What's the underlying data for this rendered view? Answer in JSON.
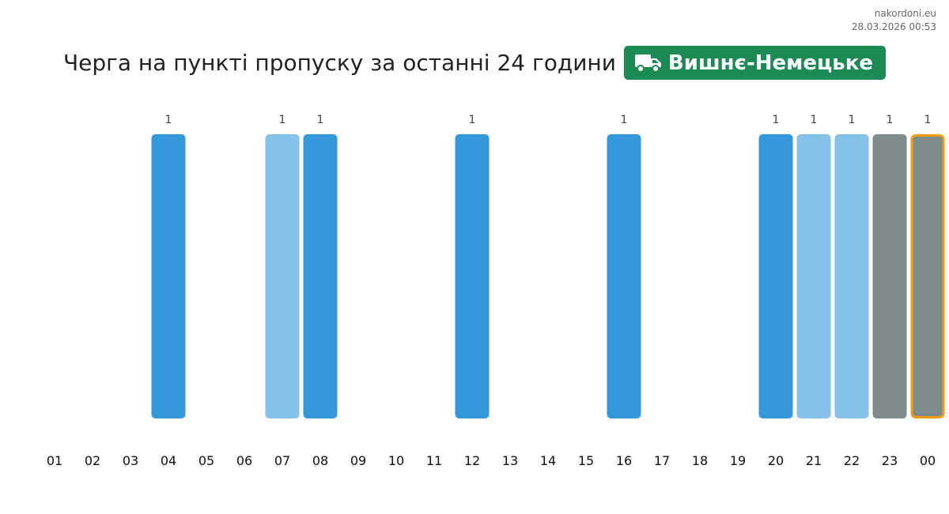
{
  "site": {
    "name": "nakordoni.eu",
    "datetime": "28.03.2026 00:53"
  },
  "header": {
    "title": "Черга на пункті пропуску за останні 24 години",
    "checkpoint": "Вишнє-Немецьке",
    "icon": "truck-icon"
  },
  "colors": {
    "normal": "#3498db",
    "light": "#85c1e9",
    "gray": "#7f8c8d",
    "current_border": "#f39c12",
    "badge": "#1b8a55"
  },
  "chart_data": {
    "type": "bar",
    "categories": [
      "01",
      "02",
      "03",
      "04",
      "05",
      "06",
      "07",
      "08",
      "09",
      "10",
      "11",
      "12",
      "13",
      "14",
      "15",
      "16",
      "17",
      "18",
      "19",
      "20",
      "21",
      "22",
      "23",
      "00"
    ],
    "values": [
      0,
      0,
      0,
      1,
      0,
      0,
      1,
      1,
      0,
      0,
      0,
      1,
      0,
      0,
      0,
      1,
      0,
      0,
      0,
      1,
      1,
      1,
      1,
      1
    ],
    "bar_colors": [
      "",
      "",
      "",
      "normal",
      "",
      "",
      "light",
      "normal",
      "",
      "",
      "",
      "normal",
      "",
      "",
      "",
      "normal",
      "",
      "",
      "",
      "normal",
      "light",
      "light",
      "gray",
      "gray"
    ],
    "highlighted": "00",
    "ylim": [
      0,
      1
    ]
  }
}
